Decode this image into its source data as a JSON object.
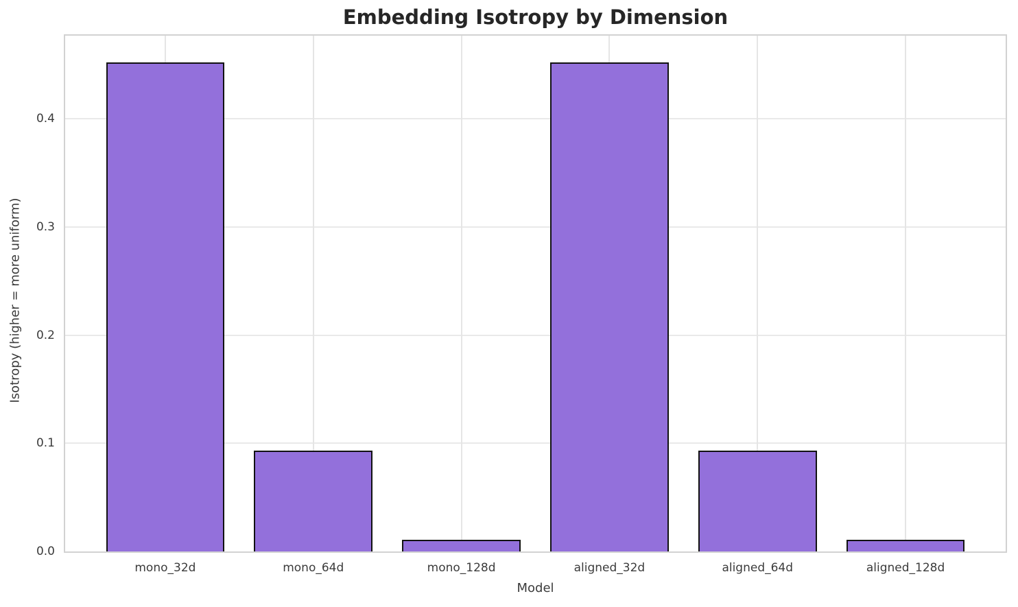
{
  "chart_data": {
    "type": "bar",
    "title": "Embedding Isotropy by Dimension",
    "xlabel": "Model",
    "ylabel": "Isotropy (higher = more uniform)",
    "categories": [
      "mono_32d",
      "mono_64d",
      "mono_128d",
      "aligned_32d",
      "aligned_64d",
      "aligned_128d"
    ],
    "values": [
      0.452,
      0.093,
      0.011,
      0.452,
      0.093,
      0.011
    ],
    "yticks": [
      0.0,
      0.1,
      0.2,
      0.3,
      0.4
    ],
    "ytick_labels": [
      "0.0",
      "0.1",
      "0.2",
      "0.3",
      "0.4"
    ],
    "ylim": [
      0,
      0.477
    ],
    "grid": true,
    "legend_position": "none",
    "bar_width_fraction": 0.8,
    "colors": {
      "bar_fill": "#9370DB",
      "bar_edge": "#111111",
      "grid_line": "#e9e9e9",
      "spine": "#d2d2d2",
      "tick_text": "#3b3b3b",
      "title_text": "#262626",
      "background": "#ffffff"
    }
  }
}
